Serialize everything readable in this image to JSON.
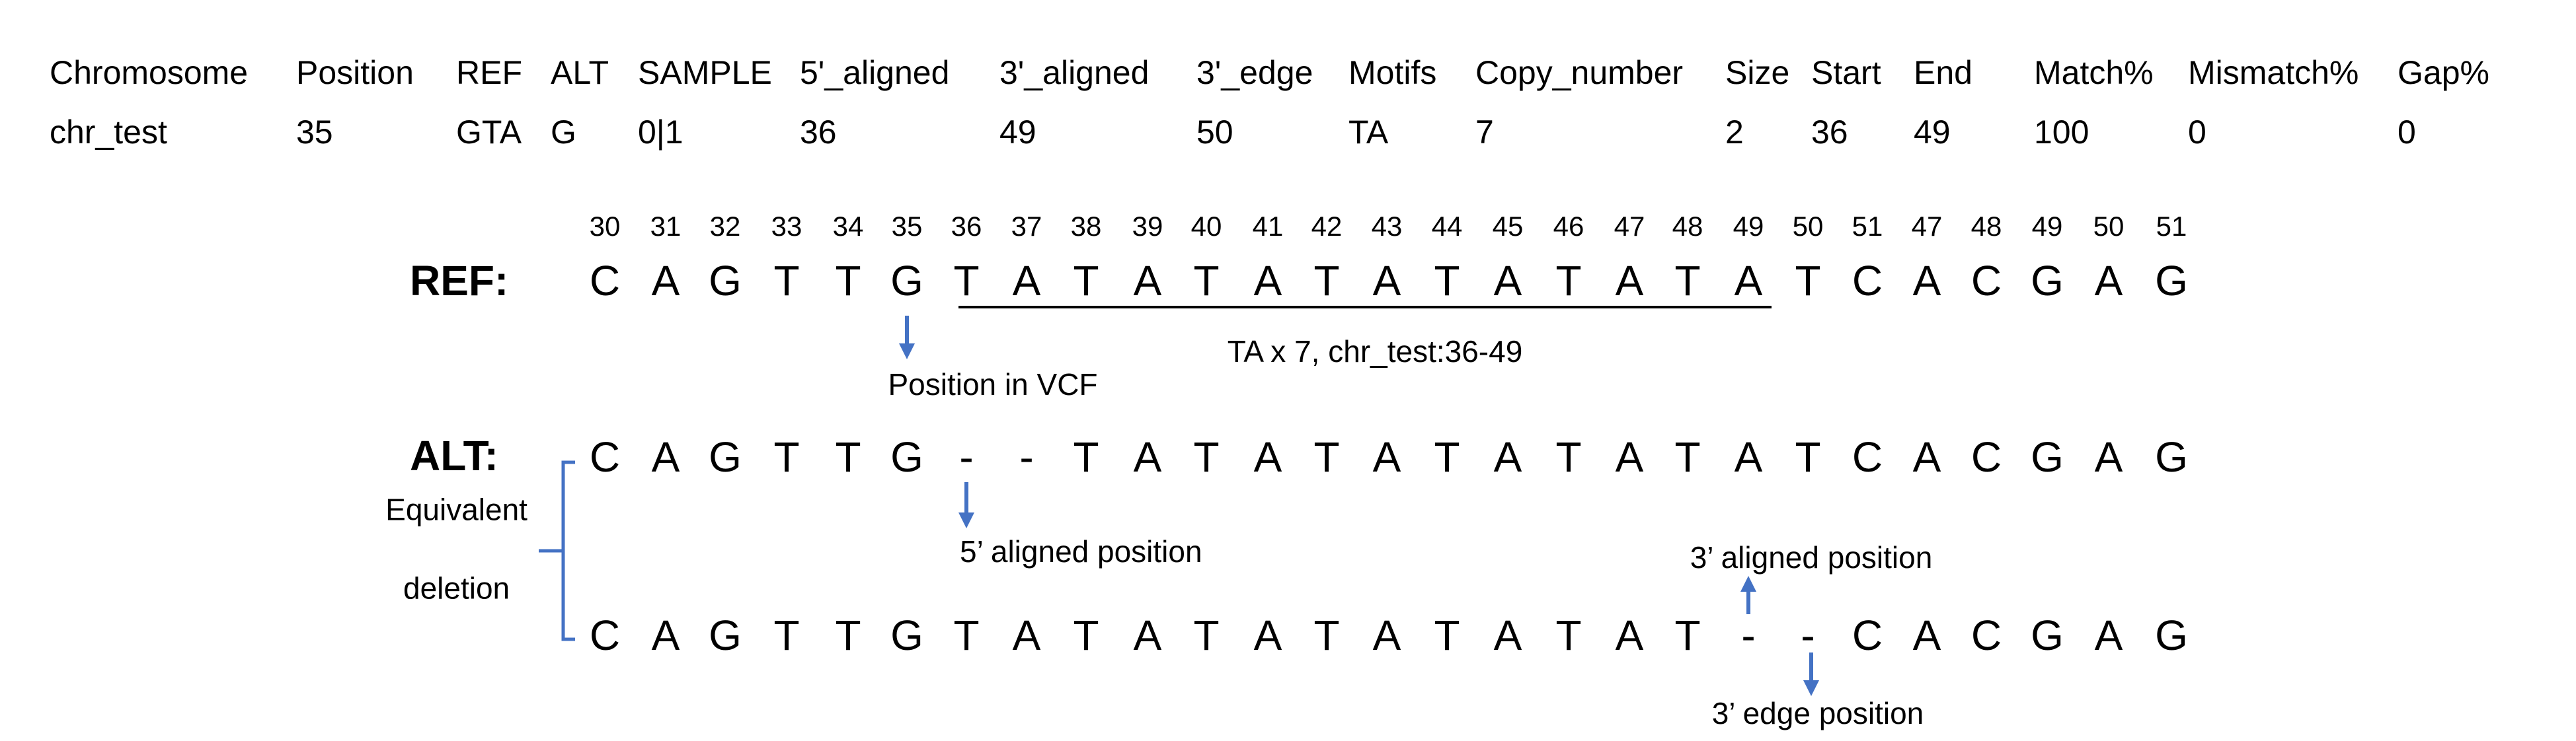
{
  "colors": {
    "text": "#000000",
    "arrow": "#4472C4",
    "bracket": "#4472C4",
    "underline": "#000000"
  },
  "table": {
    "headers": [
      "Chromosome",
      "Position",
      "REF",
      "ALT",
      "SAMPLE",
      "5'_aligned",
      "3'_aligned",
      "3'_edge",
      "Motifs",
      "Copy_number",
      "Size",
      "Start",
      "End",
      "Match%",
      "Mismatch%",
      "Gap%"
    ],
    "row": [
      "chr_test",
      "35",
      "GTA",
      "G",
      "0|1",
      "36",
      "49",
      "50",
      "TA",
      "7",
      "2",
      "36",
      "49",
      "100",
      "0",
      "0"
    ]
  },
  "positions": [
    "30",
    "31",
    "32",
    "33",
    "34",
    "35",
    "36",
    "37",
    "38",
    "39",
    "40",
    "41",
    "42",
    "43",
    "44",
    "45",
    "46",
    "47",
    "48",
    "49",
    "50",
    "51",
    "47",
    "48",
    "49",
    "50",
    "51"
  ],
  "ref": {
    "label": "REF:",
    "bases": [
      "C",
      "A",
      "G",
      "T",
      "T",
      "G",
      "T",
      "A",
      "T",
      "A",
      "T",
      "A",
      "T",
      "A",
      "T",
      "A",
      "T",
      "A",
      "T",
      "A",
      "T",
      "C",
      "A",
      "C",
      "G",
      "A",
      "G"
    ],
    "repeat_note": "TA x 7, chr_test:36-49",
    "vcf_note": "Position in VCF"
  },
  "alt1": {
    "label": "ALT:",
    "bases": [
      "C",
      "A",
      "G",
      "T",
      "T",
      "G",
      "-",
      "-",
      "T",
      "A",
      "T",
      "A",
      "T",
      "A",
      "T",
      "A",
      "T",
      "A",
      "T",
      "A",
      "T",
      "C",
      "A",
      "C",
      "G",
      "A",
      "G"
    ],
    "note": "5’ aligned position"
  },
  "alt2": {
    "bases": [
      "C",
      "A",
      "G",
      "T",
      "T",
      "G",
      "T",
      "A",
      "T",
      "A",
      "T",
      "A",
      "T",
      "A",
      "T",
      "A",
      "T",
      "A",
      "T",
      "-",
      "-",
      "C",
      "A",
      "C",
      "G",
      "A",
      "G"
    ],
    "note_aligned": "3’ aligned position",
    "note_edge": "3’ edge position"
  },
  "bracket_label_lines": [
    "Equivalent",
    "deletion"
  ]
}
